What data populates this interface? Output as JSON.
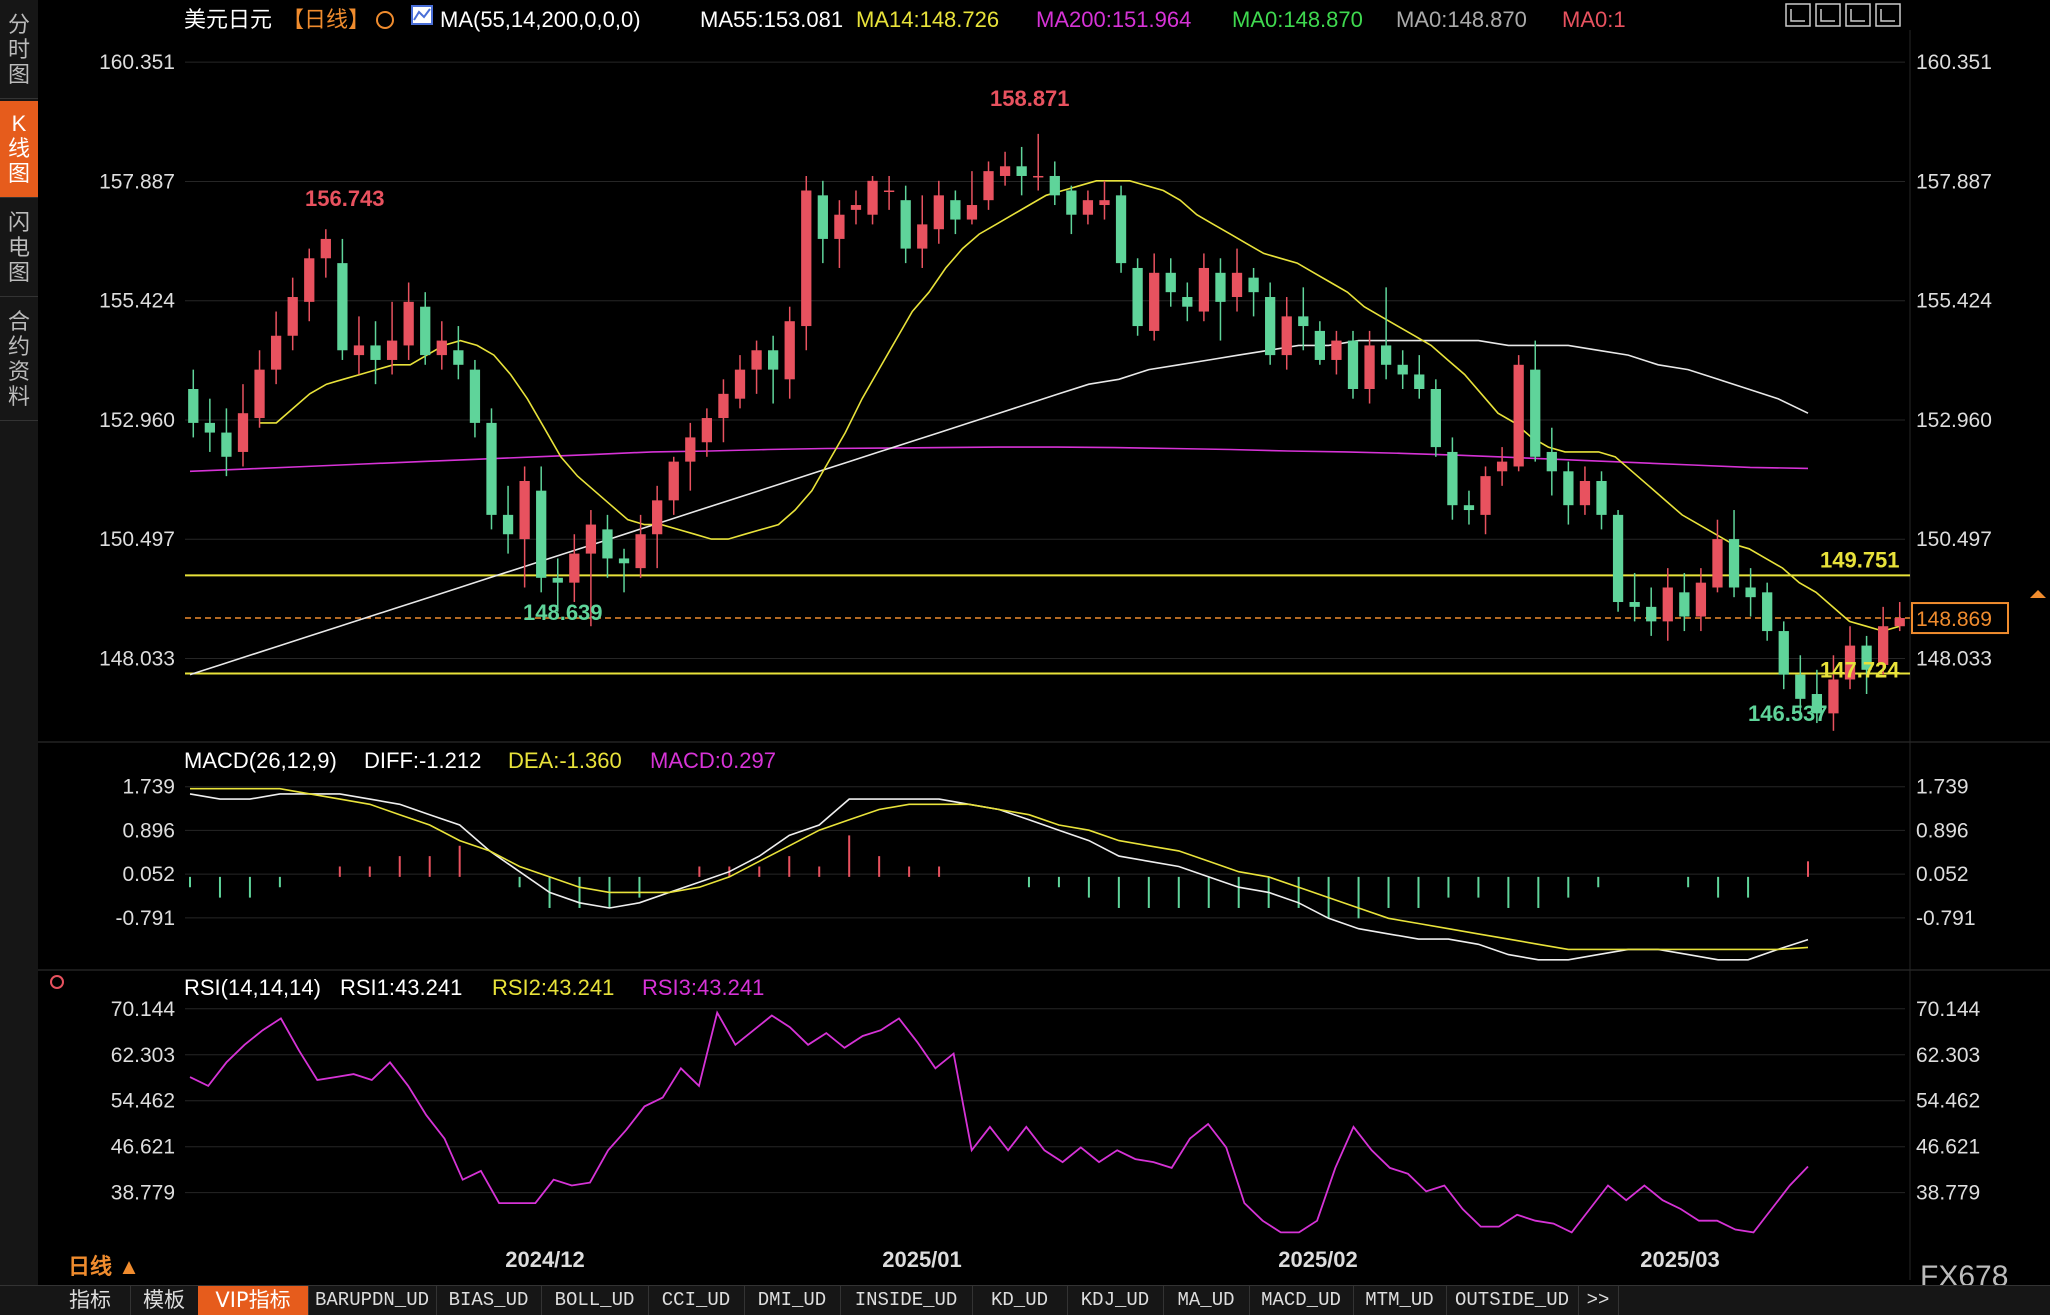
{
  "side_tabs": [
    {
      "label": "分\n时\n图",
      "active": false
    },
    {
      "label": "K\n线\n图",
      "active": true
    },
    {
      "label": "闪\n电\n图",
      "active": false
    },
    {
      "label": "合\n约\n资\n料",
      "active": false
    }
  ],
  "header": {
    "symbol": "美元日元",
    "period": "【日线】",
    "ma_params": "MA(55,14,200,0,0,0)",
    "ma55": "MA55:153.081",
    "ma14": "MA14:148.726",
    "ma200": "MA200:151.964",
    "ma0_green": "MA0:148.870",
    "ma0_gray": "MA0:148.870",
    "ma0_red": "MA0:1"
  },
  "colors": {
    "up": "#e8525f",
    "down": "#5fd49a",
    "ma14": "#e8e23a",
    "ma55": "#e8e8e8",
    "ma200": "#d633d6",
    "hline": "#e8e23a",
    "price_line": "#f08c2e",
    "grid": "#262626"
  },
  "price_axis": {
    "ticks": [
      "160.351",
      "157.887",
      "155.424",
      "152.960",
      "150.497",
      "148.033"
    ],
    "tick_values": [
      160.351,
      157.887,
      155.424,
      152.96,
      150.497,
      148.033
    ],
    "range": [
      146.35,
      160.85
    ]
  },
  "annotations": {
    "high1": "156.743",
    "high2": "158.871",
    "low1": "148.639",
    "low2": "146.537",
    "level_upper": "149.751",
    "level_lower": "147.724",
    "current_price": "148.869"
  },
  "macd": {
    "title": "MACD(26,12,9)",
    "diff": "DIFF:-1.212",
    "dea": "DEA:-1.360",
    "macd": "MACD:0.297",
    "ticks": [
      "1.739",
      "0.896",
      "0.052",
      "-0.791"
    ],
    "tick_values": [
      1.739,
      0.896,
      0.052,
      -0.791
    ],
    "range": [
      -1.7,
      2.1
    ]
  },
  "rsi": {
    "title": "RSI(14,14,14)",
    "rsi1": "RSI1:43.241",
    "rsi2": "RSI2:43.241",
    "rsi3": "RSI3:43.241",
    "ticks": [
      "70.144",
      "62.303",
      "54.462",
      "46.621",
      "38.779"
    ],
    "tick_values": [
      70.144,
      62.303,
      54.462,
      46.621,
      38.779
    ],
    "range": [
      29.0,
      72.5
    ]
  },
  "date_labels": [
    "2024/12",
    "2025/01",
    "2025/02",
    "2025/03"
  ],
  "period_label": "日线 ▲",
  "watermark": "FX678",
  "bottom_tabs": [
    "指标",
    "模板",
    "VIP指标",
    "BARUPDN_UD",
    "BIAS_UD",
    "BOLL_UD",
    "CCI_UD",
    "DMI_UD",
    "INSIDE_UD",
    "KD_UD",
    "KDJ_UD",
    "MA_UD",
    "MACD_UD",
    "MTM_UD",
    "OUTSIDE_UD",
    ">>"
  ],
  "chart_data": {
    "type": "candlestick",
    "candles": [
      [
        153.6,
        152.9,
        154.0,
        152.6
      ],
      [
        152.9,
        152.7,
        153.4,
        152.3
      ],
      [
        152.7,
        152.2,
        153.2,
        151.8
      ],
      [
        152.3,
        153.1,
        153.7,
        152.0
      ],
      [
        153.0,
        154.0,
        154.4,
        152.8
      ],
      [
        154.0,
        154.7,
        155.2,
        153.7
      ],
      [
        154.7,
        155.5,
        155.9,
        154.4
      ],
      [
        155.4,
        156.3,
        156.5,
        155.0
      ],
      [
        156.3,
        156.7,
        156.9,
        155.9
      ],
      [
        156.2,
        154.4,
        156.7,
        154.2
      ],
      [
        154.3,
        154.5,
        155.1,
        153.9
      ],
      [
        154.5,
        154.2,
        155.0,
        153.7
      ],
      [
        154.2,
        154.6,
        155.4,
        153.9
      ],
      [
        154.5,
        155.4,
        155.8,
        154.2
      ],
      [
        155.3,
        154.3,
        155.6,
        154.1
      ],
      [
        154.3,
        154.6,
        155.0,
        154.0
      ],
      [
        154.4,
        154.1,
        154.9,
        153.8
      ],
      [
        154.0,
        152.9,
        154.2,
        152.6
      ],
      [
        152.9,
        151.0,
        153.2,
        150.7
      ],
      [
        151.0,
        150.6,
        151.6,
        150.2
      ],
      [
        150.5,
        151.7,
        152.0,
        149.5
      ],
      [
        151.5,
        149.7,
        152.0,
        149.4
      ],
      [
        149.7,
        149.6,
        150.1,
        149.0
      ],
      [
        149.6,
        150.2,
        150.6,
        149.2
      ],
      [
        150.2,
        150.8,
        151.1,
        148.7
      ],
      [
        150.7,
        150.1,
        151.0,
        149.7
      ],
      [
        150.1,
        150.0,
        150.3,
        149.4
      ],
      [
        149.9,
        150.6,
        151.0,
        149.7
      ],
      [
        150.6,
        151.3,
        151.6,
        149.9
      ],
      [
        151.3,
        152.1,
        152.2,
        151.0
      ],
      [
        152.1,
        152.6,
        152.9,
        151.5
      ],
      [
        152.5,
        153.0,
        153.2,
        152.2
      ],
      [
        153.0,
        153.5,
        153.8,
        152.5
      ],
      [
        153.4,
        154.0,
        154.3,
        153.2
      ],
      [
        154.0,
        154.4,
        154.6,
        153.5
      ],
      [
        154.4,
        154.0,
        154.7,
        153.3
      ],
      [
        153.8,
        155.0,
        155.3,
        153.4
      ],
      [
        154.9,
        157.7,
        158.0,
        154.4
      ],
      [
        157.6,
        156.7,
        157.9,
        156.2
      ],
      [
        156.7,
        157.2,
        157.5,
        156.1
      ],
      [
        157.3,
        157.4,
        157.7,
        157.0
      ],
      [
        157.2,
        157.9,
        158.0,
        157.0
      ],
      [
        157.7,
        157.7,
        158.0,
        157.3
      ],
      [
        157.5,
        156.5,
        157.8,
        156.2
      ],
      [
        156.5,
        157.0,
        157.6,
        156.1
      ],
      [
        156.9,
        157.6,
        157.9,
        156.6
      ],
      [
        157.5,
        157.1,
        157.7,
        156.8
      ],
      [
        157.1,
        157.4,
        158.1,
        157.0
      ],
      [
        157.5,
        158.1,
        158.3,
        157.3
      ],
      [
        158.0,
        158.2,
        158.5,
        157.8
      ],
      [
        158.2,
        158.0,
        158.6,
        157.6
      ],
      [
        158.0,
        158.0,
        158.87,
        157.7
      ],
      [
        158.0,
        157.6,
        158.3,
        157.4
      ],
      [
        157.7,
        157.2,
        157.8,
        156.8
      ],
      [
        157.2,
        157.5,
        157.7,
        157.0
      ],
      [
        157.4,
        157.5,
        157.9,
        157.1
      ],
      [
        157.6,
        156.2,
        157.8,
        156.0
      ],
      [
        156.1,
        154.9,
        156.3,
        154.7
      ],
      [
        154.8,
        156.0,
        156.4,
        154.6
      ],
      [
        156.0,
        155.6,
        156.3,
        155.3
      ],
      [
        155.5,
        155.3,
        155.8,
        155.0
      ],
      [
        155.2,
        156.1,
        156.4,
        155.0
      ],
      [
        156.0,
        155.4,
        156.3,
        154.6
      ],
      [
        155.5,
        156.0,
        156.5,
        155.2
      ],
      [
        155.9,
        155.6,
        156.1,
        155.1
      ],
      [
        155.5,
        154.3,
        155.8,
        154.1
      ],
      [
        154.3,
        155.1,
        155.5,
        154.0
      ],
      [
        155.1,
        154.9,
        155.7,
        154.4
      ],
      [
        154.8,
        154.2,
        155.0,
        154.1
      ],
      [
        154.2,
        154.6,
        154.8,
        153.9
      ],
      [
        154.6,
        153.6,
        154.8,
        153.4
      ],
      [
        153.6,
        154.5,
        154.8,
        153.3
      ],
      [
        154.5,
        154.1,
        155.7,
        153.8
      ],
      [
        154.1,
        153.9,
        154.4,
        153.6
      ],
      [
        153.9,
        153.6,
        154.3,
        153.4
      ],
      [
        153.6,
        152.4,
        153.8,
        152.2
      ],
      [
        152.3,
        151.2,
        152.6,
        150.9
      ],
      [
        151.2,
        151.1,
        151.5,
        150.8
      ],
      [
        151.0,
        151.8,
        152.0,
        150.6
      ],
      [
        151.9,
        152.1,
        152.4,
        151.6
      ],
      [
        152.0,
        154.1,
        154.3,
        151.9
      ],
      [
        154.0,
        152.2,
        154.6,
        152.1
      ],
      [
        152.3,
        151.9,
        152.8,
        151.4
      ],
      [
        151.9,
        151.2,
        152.1,
        150.8
      ],
      [
        151.2,
        151.7,
        152.0,
        151.0
      ],
      [
        151.7,
        151.0,
        151.9,
        150.7
      ],
      [
        151.0,
        149.2,
        151.1,
        149.0
      ],
      [
        149.2,
        149.1,
        149.8,
        148.8
      ],
      [
        149.1,
        148.8,
        149.5,
        148.5
      ],
      [
        148.8,
        149.5,
        149.9,
        148.4
      ],
      [
        149.4,
        148.9,
        149.8,
        148.6
      ],
      [
        148.9,
        149.6,
        149.9,
        148.6
      ],
      [
        149.5,
        150.5,
        150.9,
        149.4
      ],
      [
        150.5,
        149.5,
        151.1,
        149.3
      ],
      [
        149.5,
        149.3,
        149.9,
        148.9
      ],
      [
        149.4,
        148.6,
        149.6,
        148.4
      ],
      [
        148.6,
        147.7,
        148.8,
        147.4
      ],
      [
        147.7,
        147.2,
        148.1,
        146.8
      ],
      [
        147.3,
        146.9,
        147.8,
        146.7
      ],
      [
        146.9,
        147.6,
        148.1,
        146.54
      ],
      [
        147.6,
        148.3,
        148.7,
        147.4
      ],
      [
        148.3,
        147.8,
        148.5,
        147.3
      ],
      [
        147.9,
        148.7,
        149.1,
        147.7
      ],
      [
        148.7,
        148.87,
        149.2,
        148.6
      ]
    ],
    "ma14": [
      152.9,
      152.9,
      153.2,
      153.5,
      153.7,
      153.8,
      153.9,
      154.0,
      154.1,
      154.1,
      154.3,
      154.5,
      154.6,
      154.5,
      154.3,
      153.9,
      153.4,
      152.8,
      152.2,
      151.8,
      151.5,
      151.2,
      150.9,
      150.8,
      150.8,
      150.7,
      150.6,
      150.5,
      150.5,
      150.6,
      150.7,
      150.8,
      151.1,
      151.5,
      152.1,
      152.7,
      153.4,
      154.0,
      154.6,
      155.2,
      155.6,
      156.1,
      156.5,
      156.8,
      157.0,
      157.2,
      157.4,
      157.6,
      157.7,
      157.8,
      157.9,
      157.9,
      157.9,
      157.8,
      157.7,
      157.5,
      157.2,
      157.0,
      156.8,
      156.6,
      156.4,
      156.3,
      156.2,
      156.0,
      155.8,
      155.6,
      155.3,
      155.1,
      154.9,
      154.7,
      154.5,
      154.2,
      153.9,
      153.5,
      153.1,
      152.9,
      152.6,
      152.4,
      152.3,
      152.3,
      152.3,
      152.2,
      151.9,
      151.6,
      151.3,
      151.0,
      150.8,
      150.6,
      150.4,
      150.3,
      150.1,
      149.9,
      149.6,
      149.4,
      149.1,
      148.8,
      148.7,
      148.6,
      148.7
    ],
    "ma55": [
      147.7,
      147.9,
      148.1,
      148.3,
      148.5,
      148.7,
      148.9,
      149.1,
      149.3,
      149.5,
      149.7,
      149.9,
      150.1,
      150.3,
      150.5,
      150.7,
      150.9,
      151.1,
      151.3,
      151.5,
      151.7,
      151.9,
      152.1,
      152.3,
      152.5,
      152.7,
      152.9,
      153.1,
      153.3,
      153.5,
      153.7,
      153.8,
      154.0,
      154.1,
      154.2,
      154.3,
      154.4,
      154.5,
      154.5,
      154.6,
      154.6,
      154.6,
      154.6,
      154.6,
      154.5,
      154.5,
      154.5,
      154.4,
      154.3,
      154.1,
      154.0,
      153.8,
      153.6,
      153.4,
      153.1
    ],
    "ma200": [
      151.9,
      151.95,
      152.0,
      152.05,
      152.1,
      152.15,
      152.2,
      152.25,
      152.3,
      152.32,
      152.35,
      152.37,
      152.38,
      152.39,
      152.4,
      152.4,
      152.39,
      152.37,
      152.35,
      152.32,
      152.3,
      152.27,
      152.23,
      152.18,
      152.13,
      152.08,
      152.03,
      151.98,
      151.96
    ],
    "macd_diff": [
      1.6,
      1.5,
      1.5,
      1.6,
      1.6,
      1.6,
      1.5,
      1.4,
      1.2,
      1.0,
      0.5,
      0.1,
      -0.3,
      -0.5,
      -0.6,
      -0.5,
      -0.3,
      -0.1,
      0.1,
      0.4,
      0.8,
      1.0,
      1.5,
      1.5,
      1.5,
      1.5,
      1.4,
      1.3,
      1.1,
      0.9,
      0.7,
      0.4,
      0.3,
      0.2,
      0.0,
      -0.2,
      -0.3,
      -0.5,
      -0.8,
      -1.0,
      -1.1,
      -1.2,
      -1.2,
      -1.3,
      -1.5,
      -1.6,
      -1.6,
      -1.5,
      -1.4,
      -1.4,
      -1.5,
      -1.6,
      -1.6,
      -1.4,
      -1.21
    ],
    "macd_dea": [
      1.7,
      1.7,
      1.7,
      1.7,
      1.6,
      1.5,
      1.4,
      1.2,
      1.0,
      0.7,
      0.5,
      0.2,
      0.0,
      -0.2,
      -0.3,
      -0.3,
      -0.3,
      -0.2,
      0.0,
      0.3,
      0.6,
      0.9,
      1.1,
      1.3,
      1.4,
      1.4,
      1.4,
      1.3,
      1.2,
      1.0,
      0.9,
      0.7,
      0.6,
      0.5,
      0.3,
      0.1,
      0.0,
      -0.2,
      -0.4,
      -0.6,
      -0.8,
      -0.9,
      -1.0,
      -1.1,
      -1.2,
      -1.3,
      -1.4,
      -1.4,
      -1.4,
      -1.4,
      -1.4,
      -1.4,
      -1.4,
      -1.4,
      -1.36
    ],
    "rsi": [
      58.5,
      57.0,
      61.0,
      64.0,
      66.5,
      68.5,
      63.0,
      58.0,
      58.5,
      59.0,
      58.0,
      61.0,
      57.0,
      52.0,
      48.0,
      41.0,
      42.5,
      37.0,
      37.0,
      37.0,
      41.0,
      40.0,
      40.5,
      46.0,
      49.5,
      53.5,
      55.0,
      60.0,
      57.0,
      69.5,
      64.0,
      66.5,
      69.0,
      67.0,
      64.0,
      66.0,
      63.5,
      65.5,
      66.5,
      68.5,
      64.5,
      60.0,
      62.5,
      46.0,
      50.0,
      46.0,
      50.0,
      46.0,
      44.0,
      46.5,
      44.0,
      46.0,
      44.5,
      44.0,
      43.0,
      48.0,
      50.5,
      46.5,
      37.0,
      34.0,
      32.0,
      32.0,
      34.0,
      43.0,
      50.0,
      46.0,
      43.0,
      42.0,
      39.0,
      40.0,
      36.0,
      33.0,
      33.0,
      35.0,
      34.0,
      33.5,
      32.0,
      36.0,
      40.0,
      37.5,
      40.0,
      37.5,
      36.0,
      34.0,
      34.0,
      32.5,
      32.0,
      36.0,
      40.0,
      43.24
    ]
  }
}
